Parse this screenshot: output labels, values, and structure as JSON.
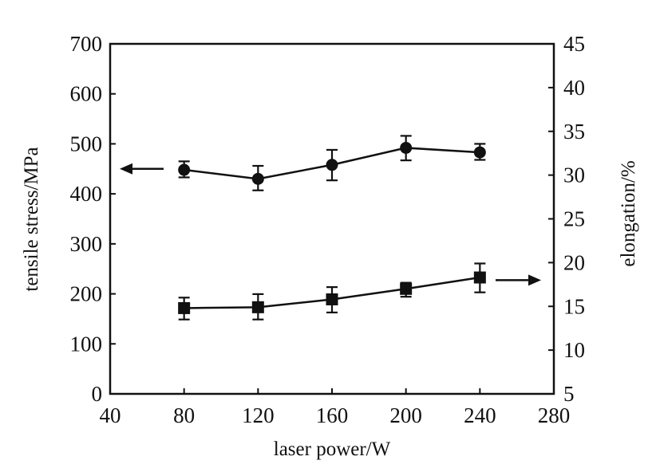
{
  "chart_data": {
    "type": "line",
    "title": "",
    "xlabel": "laser power/W",
    "ylabel_left": "tensile stress/MPa",
    "ylabel_right": "elongation/%",
    "xlim": [
      40,
      280
    ],
    "ylim_left": [
      0,
      700
    ],
    "ylim_right": [
      5,
      45
    ],
    "x_ticks": [
      40,
      80,
      120,
      160,
      200,
      240,
      280
    ],
    "y_ticks_left": [
      0,
      100,
      200,
      300,
      400,
      500,
      600,
      700
    ],
    "y_ticks_right": [
      5,
      10,
      15,
      20,
      25,
      30,
      35,
      40,
      45
    ],
    "x_tick_labels": [
      "40",
      "80",
      "120",
      "160",
      "200",
      "240",
      "280"
    ],
    "y_tick_labels_left": [
      "0",
      "100",
      "200",
      "300",
      "400",
      "500",
      "600",
      "700"
    ],
    "y_tick_labels_right": [
      "5",
      "10",
      "15",
      "20",
      "25",
      "30",
      "35",
      "40",
      "45"
    ],
    "grid": false,
    "series": [
      {
        "axis": "left",
        "marker": "circle",
        "x": [
          80,
          120,
          160,
          200,
          240
        ],
        "y": [
          448,
          430,
          458,
          492,
          483
        ],
        "err_low": [
          433,
          407,
          427,
          467,
          468
        ],
        "err_high": [
          465,
          456,
          488,
          516,
          500
        ]
      },
      {
        "axis": "right",
        "marker": "square",
        "x": [
          80,
          120,
          160,
          200,
          240
        ],
        "y": [
          14.8,
          14.9,
          15.8,
          17.0,
          18.3
        ],
        "err_low": [
          13.5,
          13.5,
          14.3,
          16.1,
          16.6
        ],
        "err_high": [
          16.0,
          16.4,
          17.2,
          17.7,
          19.9
        ]
      }
    ],
    "annotations": [
      {
        "type": "arrow",
        "direction": "left",
        "target_axis": "left",
        "y": 450
      },
      {
        "type": "arrow",
        "direction": "right",
        "target_axis": "right",
        "y": 18.0
      }
    ]
  }
}
